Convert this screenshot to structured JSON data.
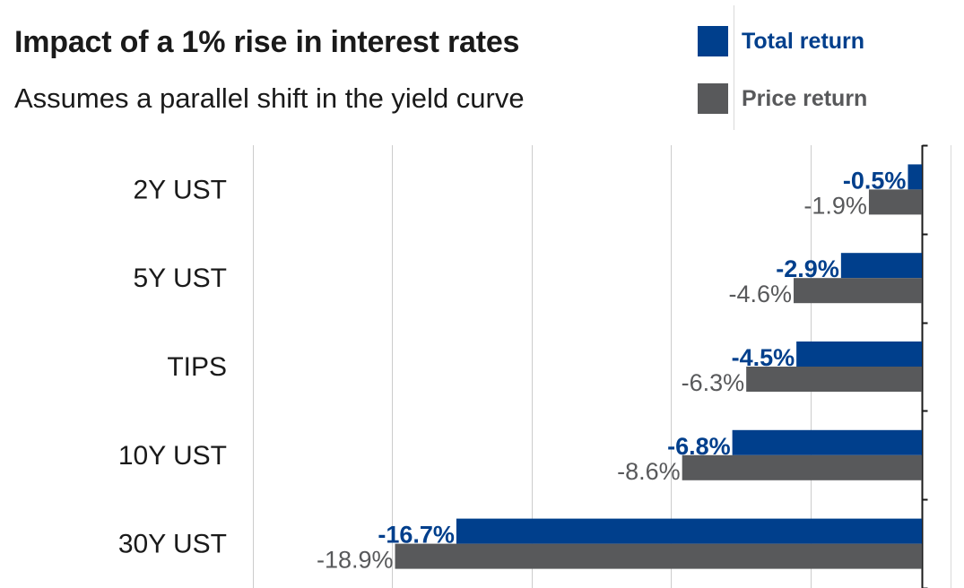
{
  "chart_data": {
    "type": "bar",
    "orientation": "horizontal",
    "title": "Impact of a 1% rise in interest rates",
    "subtitle": "Assumes a parallel shift in the yield curve",
    "categories": [
      "2Y UST",
      "5Y UST",
      "TIPS",
      "10Y UST",
      "30Y UST"
    ],
    "series": [
      {
        "name": "Total return",
        "color": "#003f8c",
        "values": [
          -0.5,
          -2.9,
          -4.5,
          -6.8,
          -16.7
        ],
        "labels": [
          "-0.5%",
          "-2.9%",
          "-4.5%",
          "-6.8%",
          "-16.7%"
        ]
      },
      {
        "name": "Price return",
        "color": "#58595b",
        "values": [
          -1.9,
          -4.6,
          -6.3,
          -8.6,
          -18.9
        ],
        "labels": [
          "-1.9%",
          "-4.6%",
          "-6.3%",
          "-8.6%",
          "-18.9%"
        ]
      }
    ],
    "xlim": [
      -24,
      0
    ],
    "grid": true,
    "legend_position": "top-right"
  }
}
